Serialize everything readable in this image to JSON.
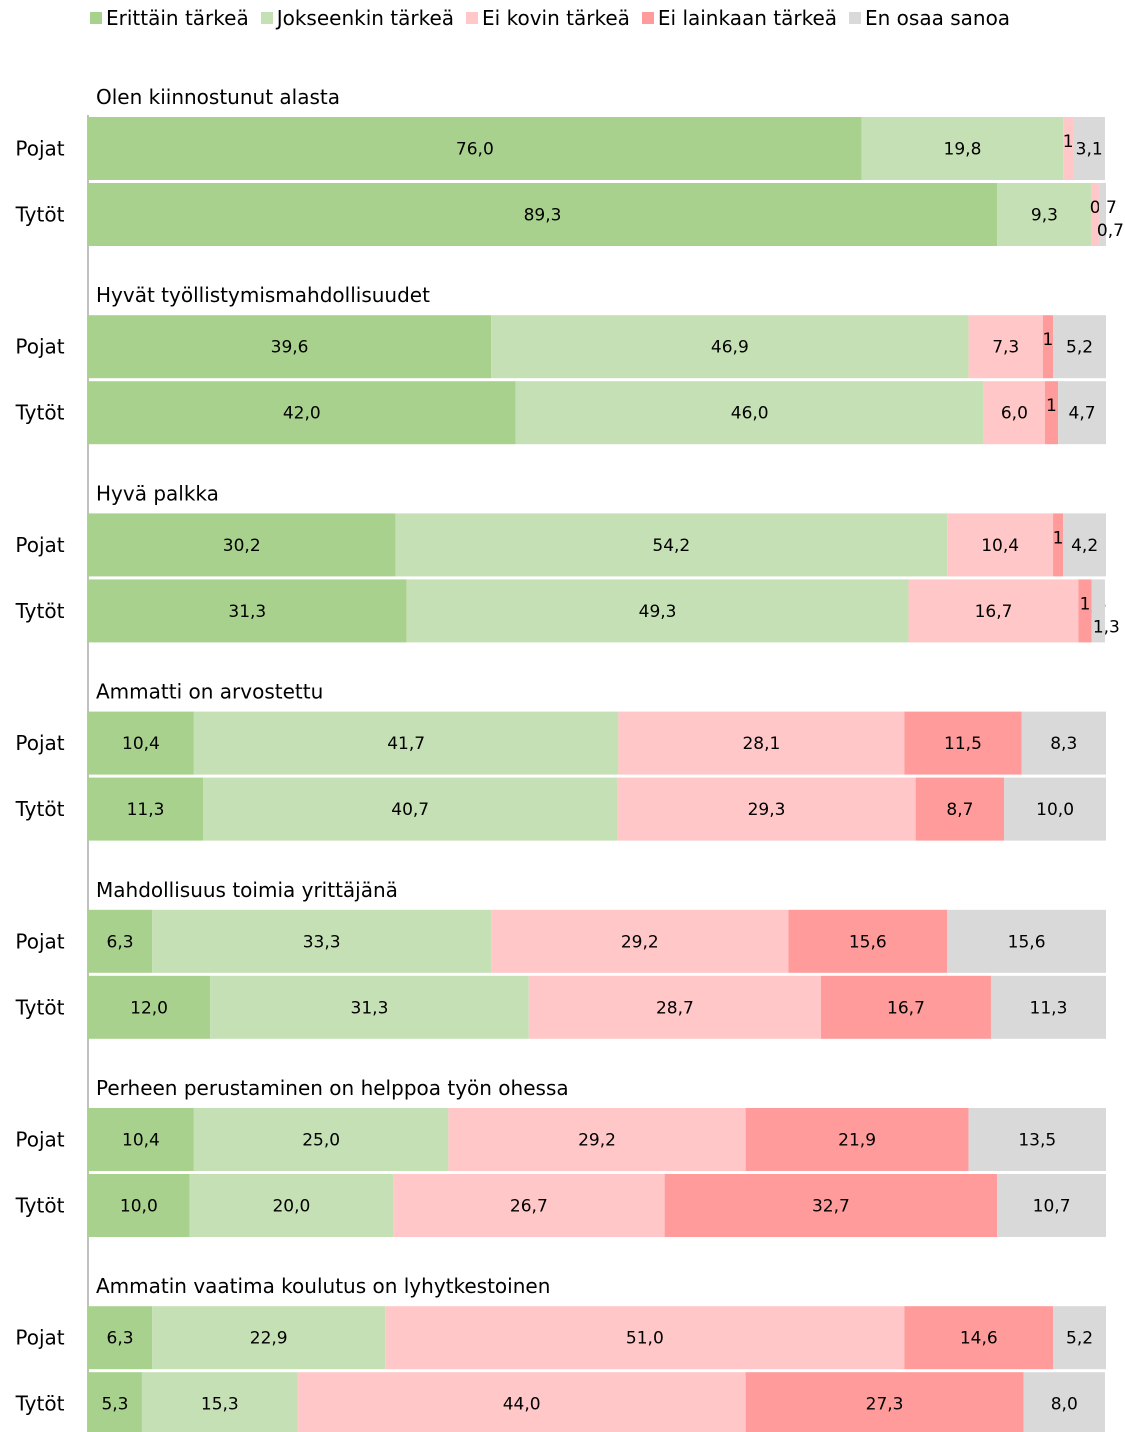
{
  "legend": {
    "items": [
      {
        "label": "Erittäin tärkeä",
        "color": "#a9d18e"
      },
      {
        "label": "Jokseenkin tärkeä",
        "color": "#c5e0b4"
      },
      {
        "label": "Ei kovin tärkeä",
        "color": "#ffc7c7"
      },
      {
        "label": "Ei lainkaan tärkeä",
        "color": "#ff9b9b"
      },
      {
        "label": "En osaa sanoa",
        "color": "#d9d9d9"
      }
    ]
  },
  "chart_data": {
    "type": "bar",
    "orientation": "horizontal",
    "stacked": true,
    "percent_scale": [
      0,
      100
    ],
    "legend_position": "top",
    "series": [
      {
        "name": "Erittäin tärkeä",
        "color": "#a9d18e"
      },
      {
        "name": "Jokseenkin tärkeä",
        "color": "#c5e0b4"
      },
      {
        "name": "Ei kovin tärkeä",
        "color": "#ffc7c7"
      },
      {
        "name": "Ei lainkaan tärkeä",
        "color": "#ff9b9b"
      },
      {
        "name": "En osaa sanoa",
        "color": "#d9d9d9"
      }
    ],
    "groups": [
      {
        "title": "Olen kiinnostunut alasta",
        "rows": [
          {
            "label": "Pojat",
            "values": [
              76.0,
              19.8,
              1.0,
              0,
              3.1
            ],
            "labels": [
              "76,0",
              "19,8",
              "1,0",
              "",
              "3,1"
            ]
          },
          {
            "label": "Tytöt",
            "values": [
              89.3,
              9.3,
              0.7,
              0,
              0.7
            ],
            "labels": [
              "89,3",
              "9,3",
              "0,7",
              "",
              "0,7"
            ]
          }
        ]
      },
      {
        "title": "Hyvät työllistymismahdollisuudet",
        "rows": [
          {
            "label": "Pojat",
            "values": [
              39.6,
              46.9,
              7.3,
              1.0,
              5.2
            ],
            "labels": [
              "39,6",
              "46,9",
              "7,3",
              "1,0",
              "5,2"
            ]
          },
          {
            "label": "Tytöt",
            "values": [
              42.0,
              46.0,
              6.0,
              1.3,
              4.7
            ],
            "labels": [
              "42,0",
              "46,0",
              "6,0",
              "1,3",
              "4,7"
            ]
          }
        ]
      },
      {
        "title": "Hyvä palkka",
        "rows": [
          {
            "label": "Pojat",
            "values": [
              30.2,
              54.2,
              10.4,
              1.0,
              4.2
            ],
            "labels": [
              "30,2",
              "54,2",
              "10,4",
              "1,0",
              "4,2"
            ]
          },
          {
            "label": "Tytöt",
            "values": [
              31.3,
              49.3,
              16.7,
              1.3,
              1.3
            ],
            "labels": [
              "31,3",
              "49,3",
              "16,7",
              "1,3",
              "1,3"
            ]
          }
        ]
      },
      {
        "title": "Ammatti on arvostettu",
        "rows": [
          {
            "label": "Pojat",
            "values": [
              10.4,
              41.7,
              28.1,
              11.5,
              8.3
            ],
            "labels": [
              "10,4",
              "41,7",
              "28,1",
              "11,5",
              "8,3"
            ]
          },
          {
            "label": "Tytöt",
            "values": [
              11.3,
              40.7,
              29.3,
              8.7,
              10.0
            ],
            "labels": [
              "11,3",
              "40,7",
              "29,3",
              "8,7",
              "10,0"
            ]
          }
        ]
      },
      {
        "title": "Mahdollisuus toimia yrittäjänä",
        "rows": [
          {
            "label": "Pojat",
            "values": [
              6.3,
              33.3,
              29.2,
              15.6,
              15.6
            ],
            "labels": [
              "6,3",
              "33,3",
              "29,2",
              "15,6",
              "15,6"
            ]
          },
          {
            "label": "Tytöt",
            "values": [
              12.0,
              31.3,
              28.7,
              16.7,
              11.3
            ],
            "labels": [
              "12,0",
              "31,3",
              "28,7",
              "16,7",
              "11,3"
            ]
          }
        ]
      },
      {
        "title": "Perheen perustaminen on helppoa työn ohessa",
        "rows": [
          {
            "label": "Pojat",
            "values": [
              10.4,
              25.0,
              29.2,
              21.9,
              13.5
            ],
            "labels": [
              "10,4",
              "25,0",
              "29,2",
              "21,9",
              "13,5"
            ]
          },
          {
            "label": "Tytöt",
            "values": [
              10.0,
              20.0,
              26.7,
              32.7,
              10.7
            ],
            "labels": [
              "10,0",
              "20,0",
              "26,7",
              "32,7",
              "10,7"
            ]
          }
        ]
      },
      {
        "title": "Ammatin vaatima koulutus on lyhytkestoinen",
        "rows": [
          {
            "label": "Pojat",
            "values": [
              6.3,
              22.9,
              51.0,
              14.6,
              5.2
            ],
            "labels": [
              "6,3",
              "22,9",
              "51,0",
              "14,6",
              "5,2"
            ]
          },
          {
            "label": "Tytöt",
            "values": [
              5.3,
              15.3,
              44.0,
              27.3,
              8.0
            ],
            "labels": [
              "5,3",
              "15,3",
              "44,0",
              "27,3",
              "8,0"
            ]
          }
        ]
      }
    ]
  }
}
